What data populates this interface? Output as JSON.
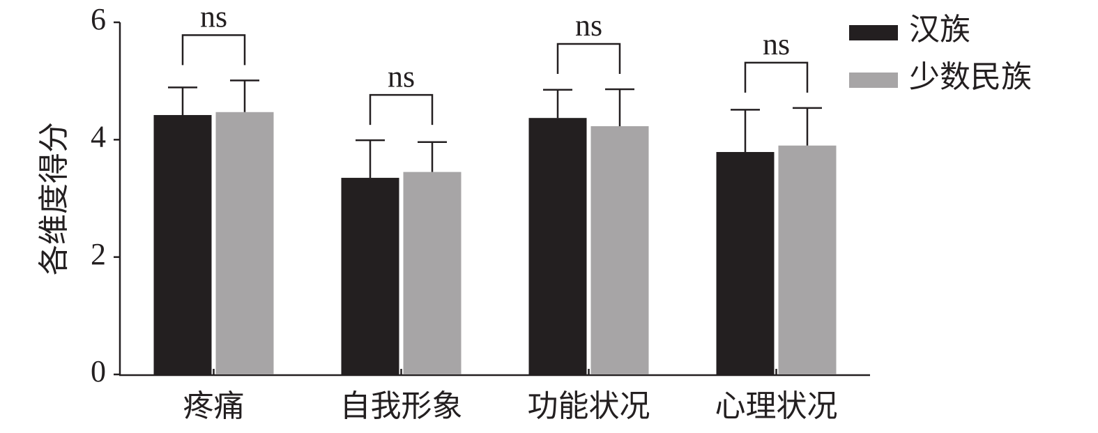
{
  "chart_data": {
    "type": "bar",
    "ylabel": "各维度得分",
    "categories": [
      "疼痛",
      "自我形象",
      "功能状况",
      "心理状况"
    ],
    "series": [
      {
        "name": "汉族",
        "color": "#231f20",
        "values": [
          4.42,
          3.35,
          4.37,
          3.79
        ],
        "errors": [
          0.47,
          0.64,
          0.48,
          0.72
        ]
      },
      {
        "name": "少数民族",
        "color": "#a7a5a6",
        "values": [
          4.47,
          3.45,
          4.23,
          3.9
        ],
        "errors": [
          0.54,
          0.51,
          0.63,
          0.64
        ]
      }
    ],
    "annotations": [
      "ns",
      "ns",
      "ns",
      "ns"
    ],
    "ylim": [
      0,
      6
    ],
    "yticks": [
      0,
      2,
      4,
      6
    ],
    "grid": false,
    "legend": "top-right"
  }
}
